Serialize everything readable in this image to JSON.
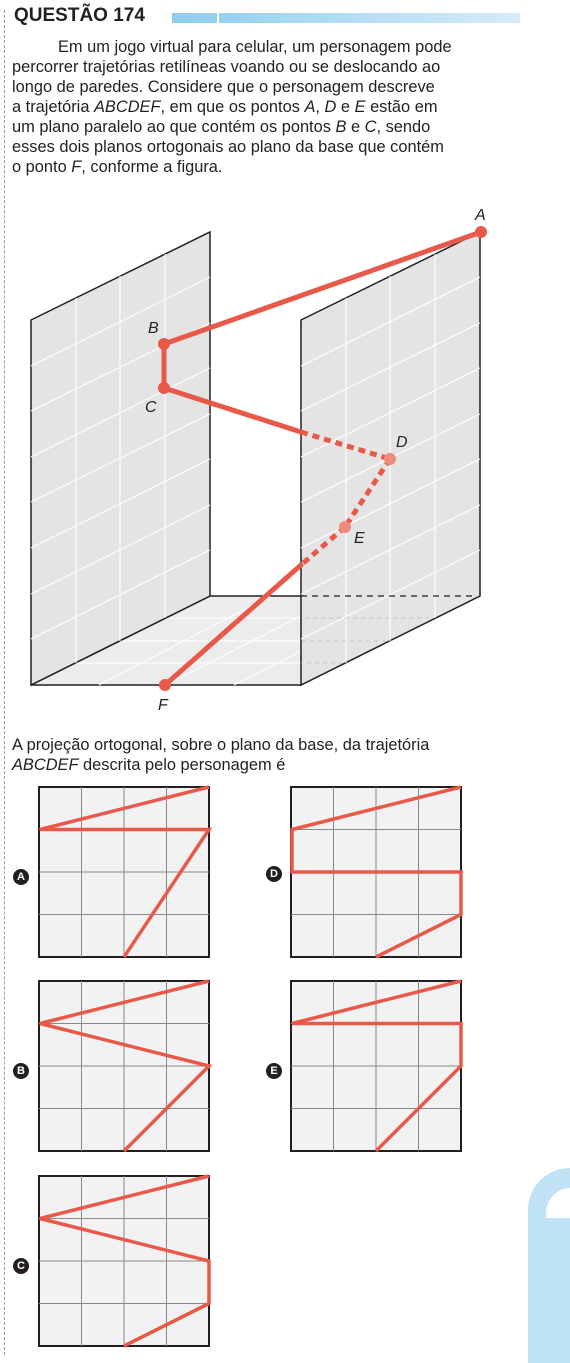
{
  "header": {
    "title": "QUESTÃO 174"
  },
  "statement": {
    "lines": [
      [
        "Em um jogo virtual para celular, um personagem pode"
      ],
      [
        "percorrer trajetórias retilíneas voando ou se deslocando ao"
      ],
      [
        "longo de paredes. Considere que o personagem descreve"
      ],
      [
        "a trajetória ",
        "ABCDEF",
        ", em que os pontos ",
        "A",
        ", ",
        "D",
        " e ",
        "E",
        " estão em"
      ],
      [
        "um plano paralelo ao que contém os pontos ",
        "B",
        " e ",
        "C",
        ", sendo"
      ],
      [
        "esses dois planos ortogonais ao plano da base que contém"
      ],
      [
        "o ponto ",
        "F",
        ", conforme a figura."
      ]
    ]
  },
  "figure": {
    "point_labels": {
      "A": "A",
      "B": "B",
      "C": "C",
      "D": "D",
      "E": "E",
      "F": "F"
    }
  },
  "command": {
    "lines": [
      [
        "A projeção ortogonal, sobre o plano da base, da trajetória"
      ],
      [
        "",
        "ABCDEF",
        " descrita pelo personagem é"
      ]
    ]
  },
  "options": [
    {
      "letter": "A"
    },
    {
      "letter": "B"
    },
    {
      "letter": "C"
    },
    {
      "letter": "D"
    },
    {
      "letter": "E"
    }
  ],
  "colors": {
    "path": "#e8594a",
    "panel": "#e6e6e6",
    "grid": "#ffffff",
    "border": "#231f20",
    "header_bar": "#8fcdf0"
  }
}
